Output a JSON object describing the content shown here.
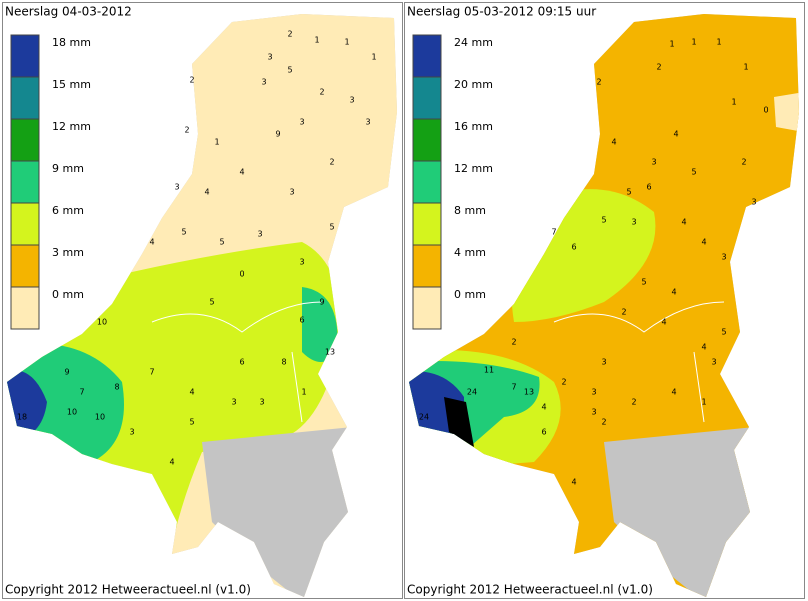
{
  "panels": [
    {
      "title": "Neerslag 04-03-2012",
      "legend": [
        {
          "label": "18 mm",
          "color": "#1c3a9c"
        },
        {
          "label": "15 mm",
          "color": "#14878f"
        },
        {
          "label": "12 mm",
          "color": "#14a014"
        },
        {
          "label": "9 mm",
          "color": "#20cc78"
        },
        {
          "label": "6 mm",
          "color": "#d4f41e"
        },
        {
          "label": "3 mm",
          "color": "#f4b400"
        },
        {
          "label": "0 mm",
          "color": "#ffebb6"
        }
      ],
      "stations": [
        "2",
        "1",
        "1",
        "3",
        "1",
        "5",
        "2",
        "3",
        "2",
        "9",
        "3",
        "3",
        "2",
        "1",
        "3",
        "2",
        "3",
        "4",
        "4",
        "3",
        "4",
        "5",
        "5",
        "3",
        "0",
        "3",
        "5",
        "9",
        "6",
        "13",
        "9",
        "7",
        "10",
        "8",
        "18",
        "10",
        "10",
        "7",
        "5",
        "4",
        "3",
        "3",
        "8",
        "1",
        "6",
        "4",
        "3",
        "5"
      ],
      "copyright": "Copyright 2012 Hetweeractueel.nl (v1.0)"
    },
    {
      "title": "Neerslag 05-03-2012  09:15 uur",
      "legend": [
        {
          "label": "24 mm",
          "color": "#1c3a9c"
        },
        {
          "label": "20 mm",
          "color": "#14878f"
        },
        {
          "label": "16 mm",
          "color": "#14a014"
        },
        {
          "label": "12 mm",
          "color": "#20cc78"
        },
        {
          "label": "8 mm",
          "color": "#d4f41e"
        },
        {
          "label": "4 mm",
          "color": "#f4b400"
        },
        {
          "label": "0 mm",
          "color": "#ffebb6"
        }
      ],
      "stations": [
        "1",
        "1",
        "1",
        "2",
        "1",
        "0",
        "1",
        "4",
        "4",
        "2",
        "3",
        "5",
        "6",
        "5",
        "2",
        "4",
        "7",
        "6",
        "5",
        "3",
        "4",
        "3",
        "3",
        "5",
        "4",
        "2",
        "11",
        "24",
        "7",
        "13",
        "26",
        "24",
        "4",
        "6",
        "2",
        "3",
        "2",
        "4",
        "4",
        "3",
        "2",
        "3",
        "1",
        "5",
        "4",
        "3",
        "4",
        "2"
      ],
      "copyright": "Copyright 2012 Hetweeractueel.nl (v1.0)"
    }
  ]
}
